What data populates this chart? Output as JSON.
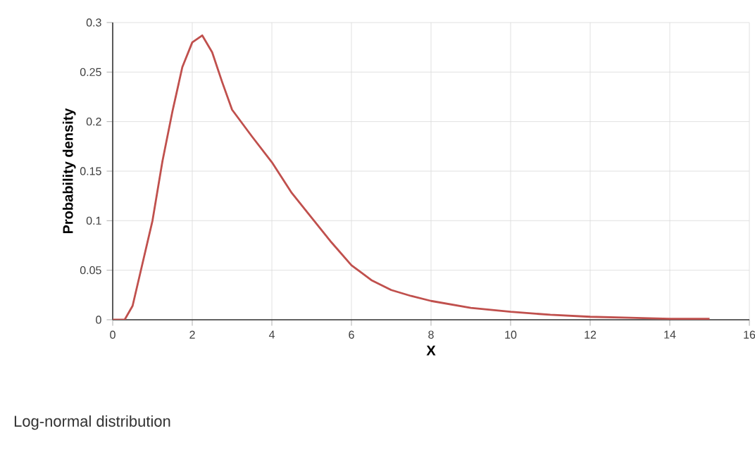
{
  "chart_data": {
    "type": "line",
    "xlabel": "X",
    "ylabel": "Probability density",
    "annotations": [
      "Log-normal distribution"
    ],
    "x": [
      0,
      0.3,
      0.5,
      0.75,
      1,
      1.25,
      1.5,
      1.75,
      2,
      2.25,
      2.5,
      2.75,
      3,
      3.5,
      4,
      4.5,
      5,
      5.5,
      6,
      6.5,
      7,
      7.5,
      8,
      9,
      10,
      11,
      12,
      13,
      14,
      15
    ],
    "series": [
      {
        "color": "#c0504d",
        "values": [
          0,
          0,
          0.014,
          0.057,
          0.1,
          0.16,
          0.21,
          0.255,
          0.28,
          0.287,
          0.27,
          0.24,
          0.212,
          0.185,
          0.159,
          0.128,
          0.103,
          0.078,
          0.055,
          0.04,
          0.03,
          0.024,
          0.019,
          0.012,
          0.008,
          0.005,
          0.003,
          0.002,
          0.001,
          0.001
        ]
      }
    ],
    "xlim": [
      0,
      16
    ],
    "ylim": [
      0,
      0.3
    ],
    "xticks": [
      0,
      2,
      4,
      6,
      8,
      10,
      12,
      14,
      16
    ],
    "yticks": [
      0,
      0.05,
      0.1,
      0.15,
      0.2,
      0.25,
      0.3
    ],
    "grid": true,
    "marker": "none",
    "line_style": "solid"
  }
}
